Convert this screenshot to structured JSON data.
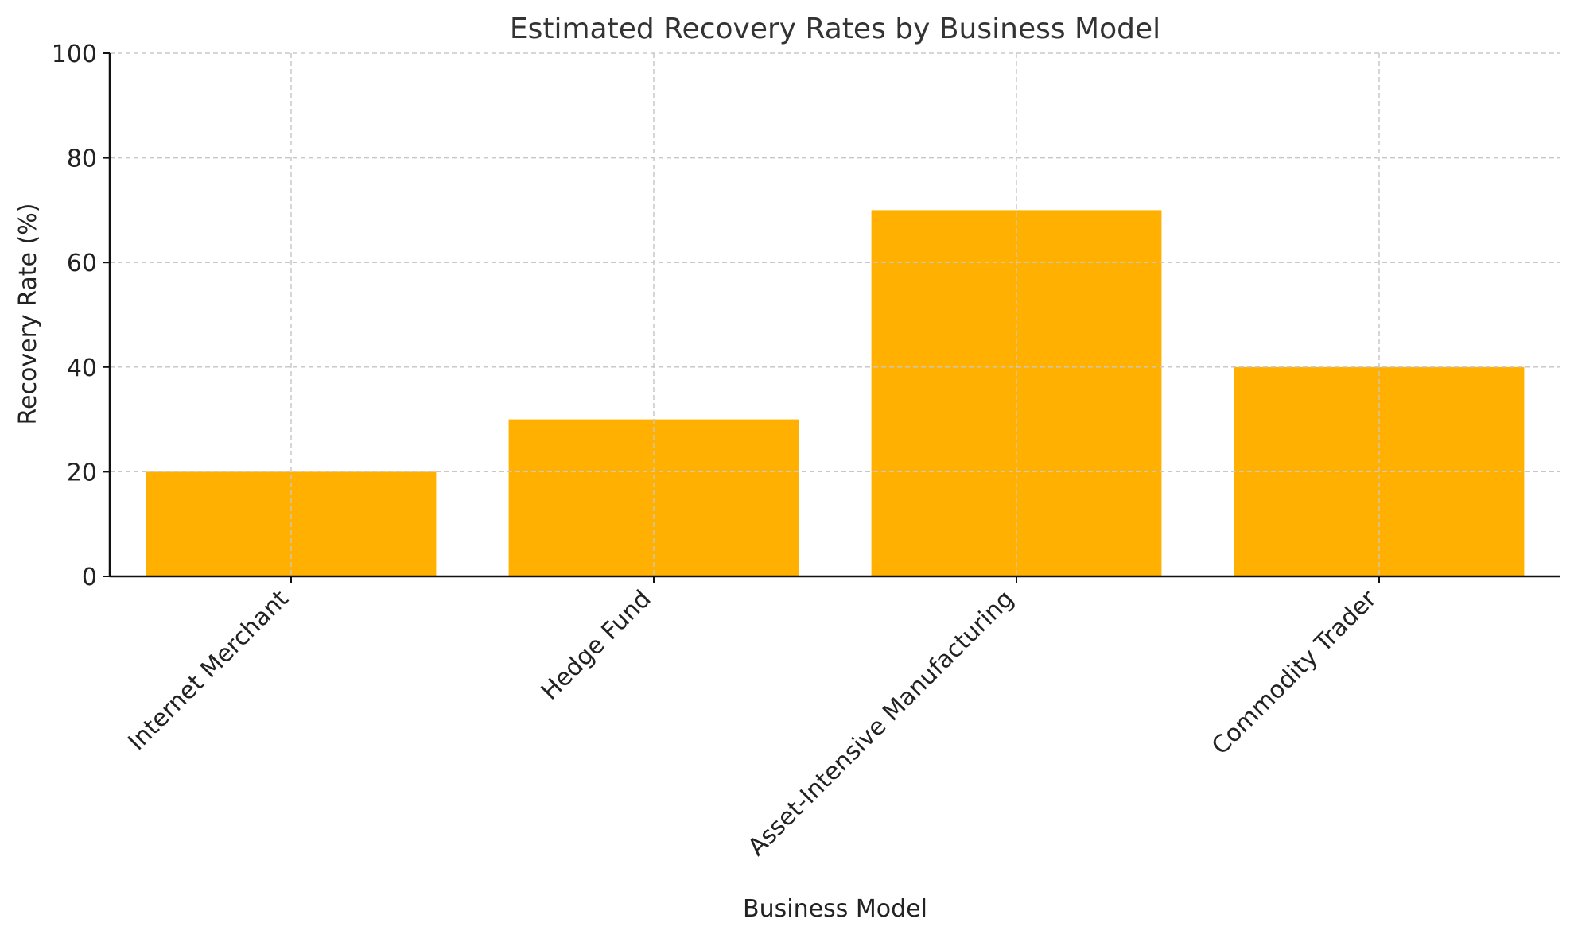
{
  "chart_data": {
    "type": "bar",
    "title": "Estimated Recovery Rates by Business Model",
    "xlabel": "Business Model",
    "ylabel": "Recovery Rate (%)",
    "categories": [
      "Internet Merchant",
      "Hedge Fund",
      "Asset-Intensive Manufacturing",
      "Commodity Trader"
    ],
    "values": [
      20,
      30,
      70,
      40
    ],
    "ylim": [
      0,
      100
    ],
    "yticks": [
      0,
      20,
      40,
      60,
      80,
      100
    ],
    "grid": true,
    "bar_color": "#FFB000"
  }
}
